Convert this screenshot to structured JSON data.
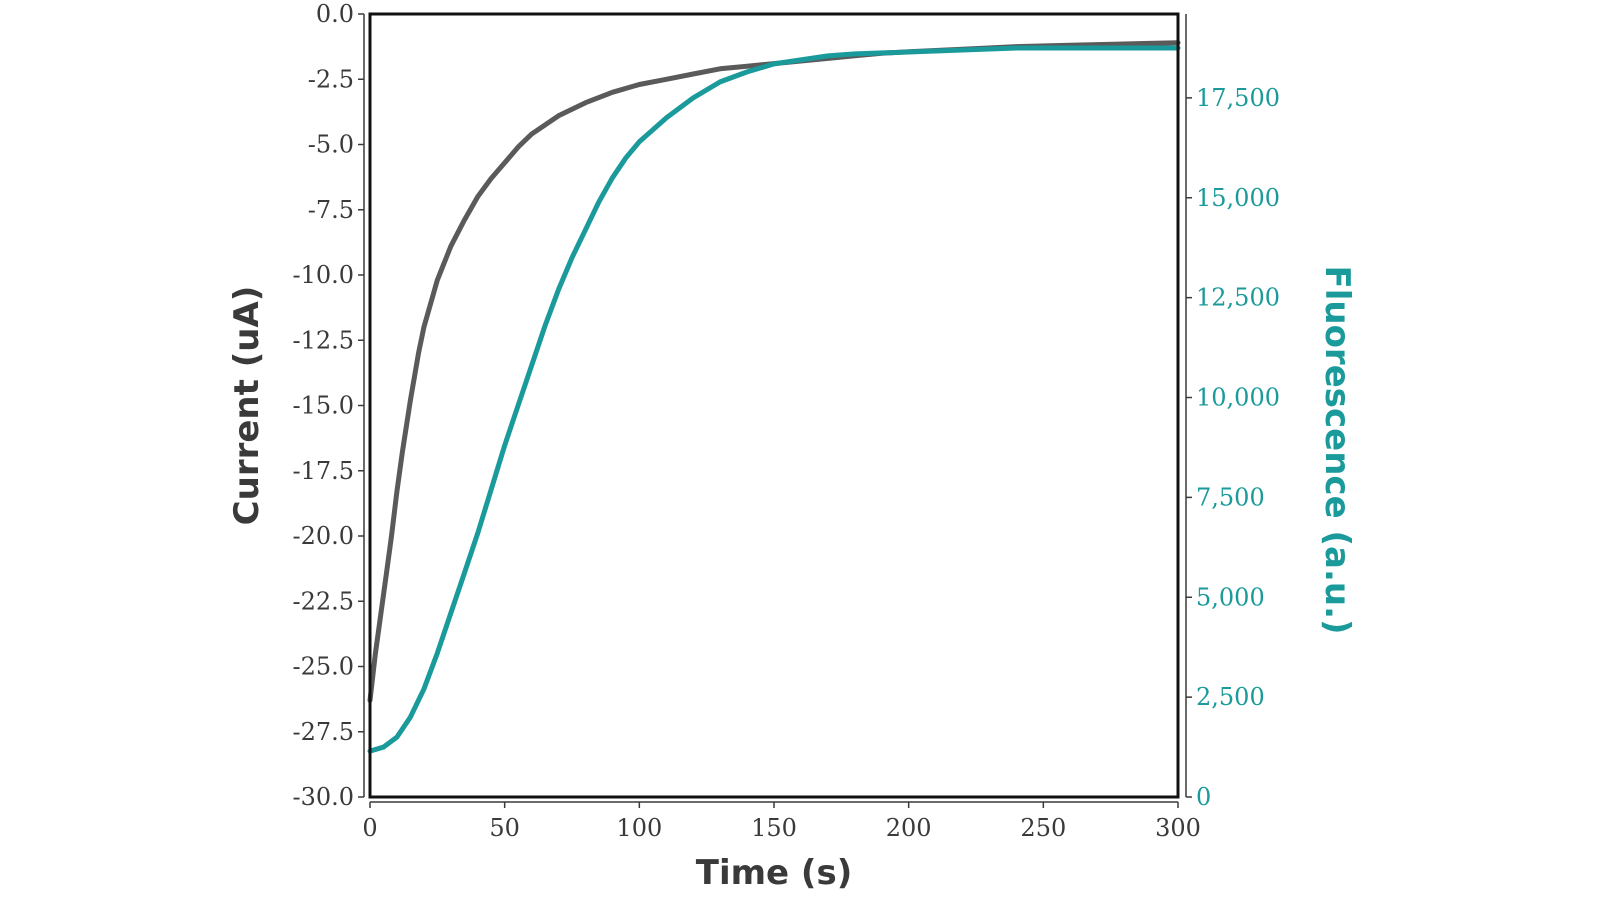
{
  "chart_data": {
    "type": "line",
    "xlabel": "Time (s)",
    "ylabel_left": "Current (uA)",
    "ylabel_right": "Fluorescence (a.u.)",
    "xlim": [
      0,
      300
    ],
    "ylim_left": [
      -30,
      0
    ],
    "ylim_right": [
      0,
      19600
    ],
    "x_ticks": [
      "0",
      "50",
      "100",
      "150",
      "200",
      "250",
      "300"
    ],
    "y_left_ticks": [
      "0.0",
      "-2.5",
      "-5.0",
      "-7.5",
      "-10.0",
      "-12.5",
      "-15.0",
      "-17.5",
      "-20.0",
      "-22.5",
      "-25.0",
      "-27.5",
      "-30.0"
    ],
    "y_right_ticks": [
      "0",
      "2,500",
      "5,000",
      "7,500",
      "10,000",
      "12,500",
      "15,000",
      "17,500"
    ],
    "grid": false,
    "colors": {
      "current": "#5a5a5a",
      "fluorescence": "#1a9a9a",
      "axis_left": "#3a3a3a",
      "axis_right": "#1a9a9a"
    },
    "series": [
      {
        "axis": "left",
        "x": [
          0,
          2,
          4,
          6,
          8,
          10,
          12,
          15,
          18,
          20,
          25,
          30,
          35,
          40,
          45,
          50,
          55,
          60,
          70,
          80,
          90,
          100,
          110,
          120,
          130,
          140,
          150,
          160,
          170,
          180,
          190,
          200,
          220,
          240,
          260,
          280,
          300
        ],
        "y": [
          -26.3,
          -24.5,
          -23.0,
          -21.5,
          -20.0,
          -18.3,
          -16.8,
          -14.8,
          -13.0,
          -12.0,
          -10.2,
          -8.9,
          -7.9,
          -7.0,
          -6.3,
          -5.7,
          -5.1,
          -4.6,
          -3.9,
          -3.4,
          -3.0,
          -2.7,
          -2.5,
          -2.3,
          -2.1,
          -2.0,
          -1.9,
          -1.8,
          -1.7,
          -1.6,
          -1.5,
          -1.45,
          -1.35,
          -1.25,
          -1.2,
          -1.15,
          -1.1
        ]
      },
      {
        "axis": "right",
        "x": [
          0,
          5,
          10,
          15,
          20,
          25,
          30,
          35,
          40,
          45,
          50,
          55,
          60,
          65,
          70,
          75,
          80,
          85,
          90,
          95,
          100,
          110,
          120,
          130,
          140,
          150,
          160,
          170,
          180,
          200,
          220,
          240,
          260,
          280,
          300
        ],
        "y": [
          1150,
          1250,
          1500,
          2000,
          2700,
          3600,
          4600,
          5600,
          6600,
          7700,
          8800,
          9800,
          10800,
          11800,
          12700,
          13500,
          14200,
          14900,
          15500,
          16000,
          16400,
          17000,
          17500,
          17900,
          18150,
          18350,
          18450,
          18550,
          18600,
          18650,
          18700,
          18750,
          18750,
          18750,
          18750
        ]
      }
    ]
  }
}
